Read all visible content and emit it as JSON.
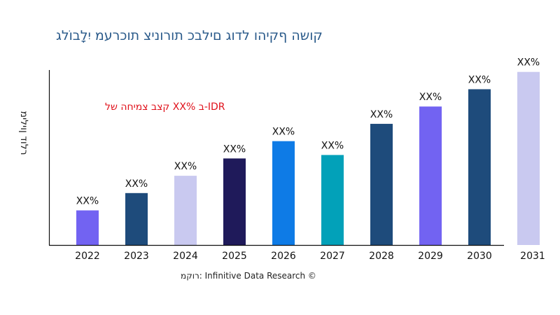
{
  "title": "קושה ףקיהו לדוג םילבכ תורוניצ תוכרעמ יִלָבוֹלג",
  "source": "רוקמ: Infinitive Data Research ©",
  "chart_data": {
    "type": "bar",
    "title": "קושה ףקיהו לדוג םילבכ תורוניצ תוכרעמ יִלָבוֹלג",
    "ylabel": "רלוד ןוילימ",
    "xlabel": "",
    "annotation": "קצב צמיחה של XX% ב-IDR",
    "categories": [
      "2022",
      "2023",
      "2024",
      "2025",
      "2026",
      "2027",
      "2028",
      "2029",
      "2030",
      "2031"
    ],
    "values": [
      20,
      30,
      40,
      50,
      60,
      52,
      70,
      80,
      90,
      100
    ],
    "data_labels": [
      "XX%",
      "XX%",
      "XX%",
      "XX%",
      "XX%",
      "XX%",
      "XX%",
      "XX%",
      "XX%",
      "XX%"
    ],
    "colors": [
      "#7263f2",
      "#1e4b7b",
      "#c9c9f0",
      "#1f1a5a",
      "#0e7be6",
      "#02a1b9",
      "#1e4b7b",
      "#7263f2",
      "#1e4b7b",
      "#c9c9f0"
    ],
    "ylim": [
      0,
      110
    ],
    "grid": false
  }
}
